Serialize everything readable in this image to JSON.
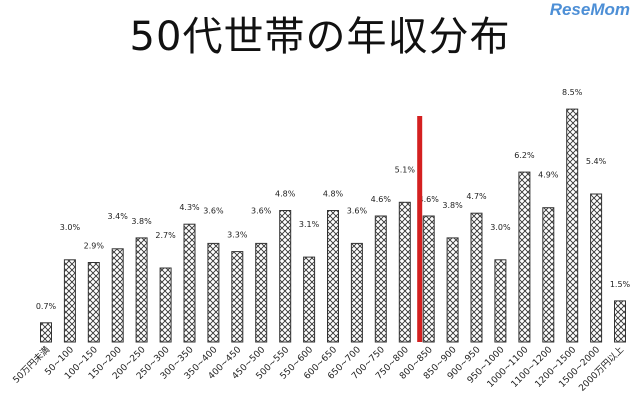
{
  "page": {
    "title": "50代世帯の年収分布",
    "logo": "ReseMom"
  },
  "chart_data": {
    "type": "bar",
    "title": "50代世帯の年収分布",
    "xlabel": "",
    "ylabel": "",
    "ylim": [
      0,
      9
    ],
    "grid": false,
    "categories": [
      "50万円未満",
      "50~100",
      "100~150",
      "150~200",
      "200~250",
      "250~300",
      "300~350",
      "350~400",
      "400~450",
      "450~500",
      "500~550",
      "550~600",
      "600~650",
      "650~700",
      "700~750",
      "750~800",
      "800~850",
      "850~900",
      "900~950",
      "950~1000",
      "1000~1100",
      "1100~1200",
      "1200~1500",
      "1500~2000",
      "2000万円以上"
    ],
    "values": [
      0.7,
      3.0,
      2.9,
      3.4,
      3.8,
      2.7,
      4.3,
      3.6,
      3.3,
      3.6,
      4.8,
      3.1,
      4.8,
      3.6,
      4.6,
      5.1,
      4.6,
      3.8,
      4.7,
      3.0,
      6.2,
      4.9,
      8.5,
      5.4,
      1.5
    ],
    "value_labels": [
      "0.7%",
      "3.0%",
      "2.9%",
      "3.4%",
      "3.8%",
      "2.7%",
      "4.3%",
      "3.6%",
      "3.3%",
      "3.6%",
      "4.8%",
      "3.1%",
      "4.8%",
      "3.6%",
      "4.6%",
      "5.1%",
      "4.6%",
      "3.8%",
      "4.7%",
      "3.0%",
      "6.2%",
      "4.9%",
      "8.5%",
      "5.4%",
      "1.5%"
    ],
    "marker_line": {
      "between": [
        "750~800",
        "800~850"
      ],
      "color": "#d42020"
    },
    "bar_fill": "crosshatch",
    "bar_color": "#333333"
  }
}
